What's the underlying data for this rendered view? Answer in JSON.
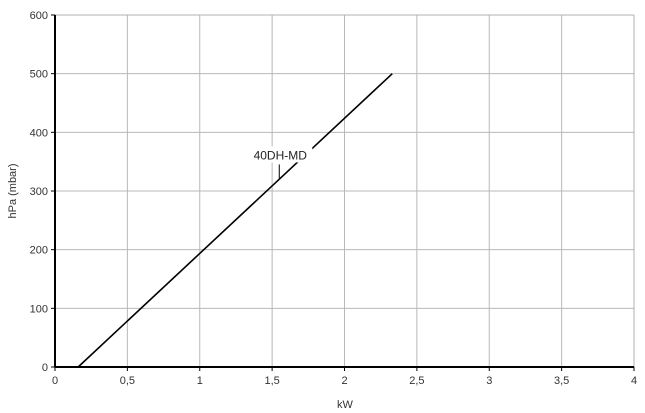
{
  "chart_data": {
    "type": "line",
    "title": "",
    "xlabel": "kW",
    "ylabel": "hPa (mbar)",
    "xlim": [
      0,
      4
    ],
    "ylim": [
      0,
      600
    ],
    "x_ticks": [
      0,
      0.5,
      1,
      1.5,
      2,
      2.5,
      3,
      3.5,
      4
    ],
    "x_tick_labels": [
      "0",
      "0,5",
      "1",
      "1,5",
      "2",
      "2,5",
      "3",
      "3,5",
      "4"
    ],
    "y_ticks": [
      0,
      100,
      200,
      300,
      400,
      500,
      600
    ],
    "y_tick_labels": [
      "0",
      "100",
      "200",
      "300",
      "400",
      "500",
      "600"
    ],
    "grid": true,
    "legend": "none",
    "series": [
      {
        "name": "40DH-MD",
        "color": "#000000",
        "x": [
          0.16,
          2.33
        ],
        "y": [
          0,
          500
        ]
      }
    ],
    "annotations": [
      {
        "text": "40DH-MD",
        "series": 0,
        "x": 1.57,
        "y": 318
      }
    ]
  },
  "colors": {
    "grid": "#b8b8b8",
    "axis": "#000000",
    "frame": "#b0b0b0",
    "line": "#000000"
  }
}
